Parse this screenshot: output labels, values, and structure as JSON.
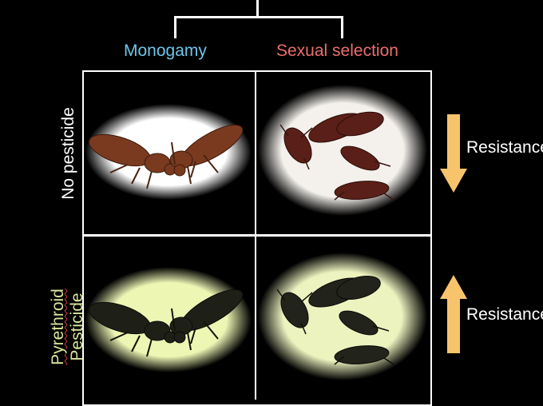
{
  "columns": {
    "monogamy": {
      "label": "Monogamy",
      "color": "#6ec6ea"
    },
    "sexual_selection": {
      "label": "Sexual selection",
      "color": "#ec6f6b"
    }
  },
  "rows": {
    "no_pesticide": {
      "label": "No pesticide"
    },
    "pesticide": {
      "label_line1": "Pyrethroid",
      "label_line2": "Pesticide",
      "line1_color": "#d8e79a",
      "line2_color": "#d8e79a"
    }
  },
  "indicators": {
    "top": {
      "label": "Resistance",
      "direction": "down",
      "color": "#f7c46c"
    },
    "bottom": {
      "label": "Resistance",
      "direction": "up",
      "color": "#f7c46c"
    }
  },
  "cells": {
    "vignette_color_normal": "#ffffff",
    "vignette_color_pesticide": "#eef6b4",
    "beetle_color_normal": "#7a3a1f",
    "beetle_color_pesticide": "#1e2018"
  }
}
